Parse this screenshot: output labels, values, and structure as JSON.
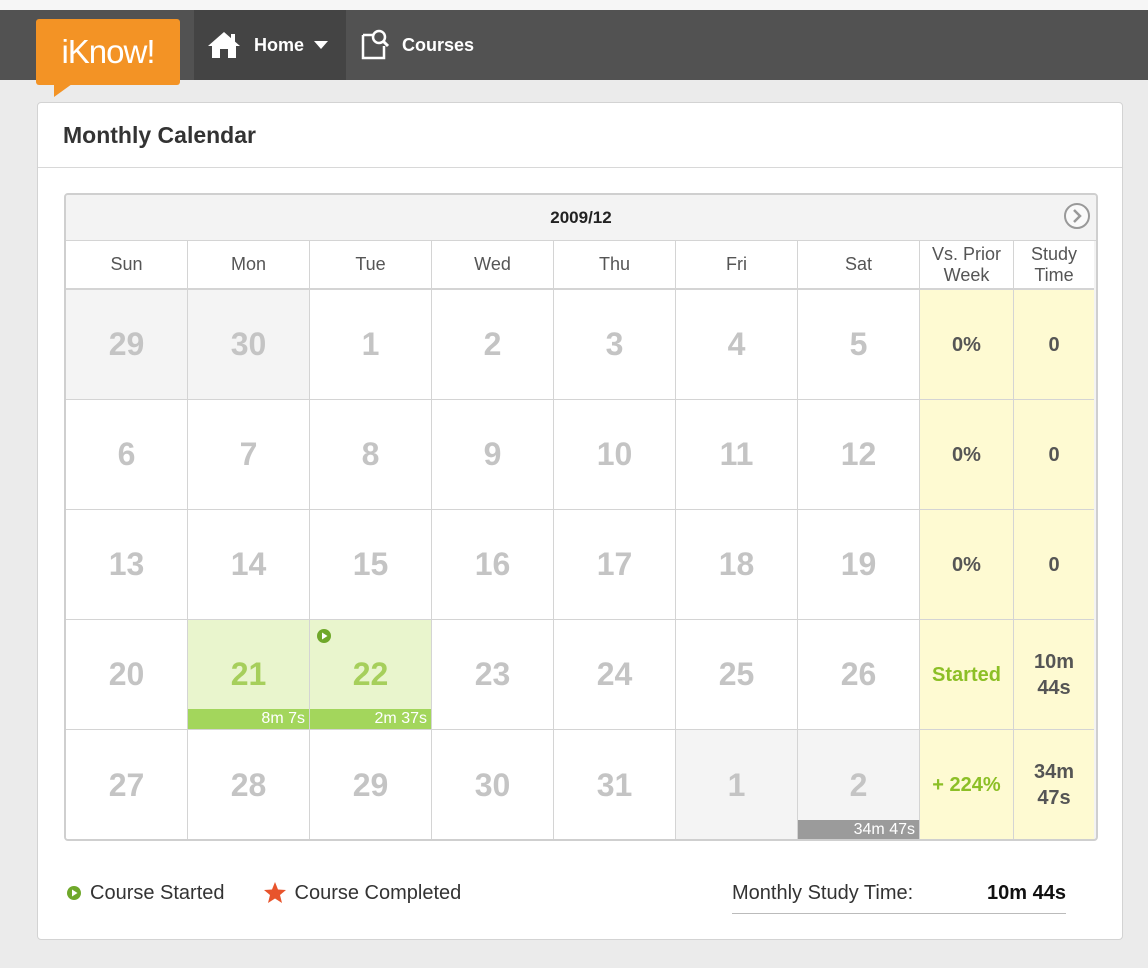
{
  "nav": {
    "logo": "iKnow!",
    "home_label": "Home",
    "courses_label": "Courses"
  },
  "panel": {
    "title": "Monthly Calendar"
  },
  "calendar": {
    "month": "2009/12",
    "headers": [
      "Sun",
      "Mon",
      "Tue",
      "Wed",
      "Thu",
      "Fri",
      "Sat",
      "Vs. Prior Week",
      "Study Time"
    ],
    "weeks": [
      {
        "days": [
          {
            "n": "29",
            "t": "other"
          },
          {
            "n": "30",
            "t": "other"
          },
          {
            "n": "1"
          },
          {
            "n": "2"
          },
          {
            "n": "3"
          },
          {
            "n": "4"
          },
          {
            "n": "5"
          }
        ],
        "vs": "0%",
        "time": "0"
      },
      {
        "days": [
          {
            "n": "6"
          },
          {
            "n": "7"
          },
          {
            "n": "8"
          },
          {
            "n": "9"
          },
          {
            "n": "10"
          },
          {
            "n": "11"
          },
          {
            "n": "12"
          }
        ],
        "vs": "0%",
        "time": "0"
      },
      {
        "days": [
          {
            "n": "13"
          },
          {
            "n": "14"
          },
          {
            "n": "15"
          },
          {
            "n": "16"
          },
          {
            "n": "17"
          },
          {
            "n": "18"
          },
          {
            "n": "19"
          }
        ],
        "vs": "0%",
        "time": "0"
      },
      {
        "days": [
          {
            "n": "20"
          },
          {
            "n": "21",
            "t": "active",
            "bar": "8m 7s"
          },
          {
            "n": "22",
            "t": "active",
            "bar": "2m 37s",
            "started": true
          },
          {
            "n": "23"
          },
          {
            "n": "24"
          },
          {
            "n": "25"
          },
          {
            "n": "26"
          }
        ],
        "vs": "Started",
        "vs_green": true,
        "time": "10m 44s"
      },
      {
        "days": [
          {
            "n": "27"
          },
          {
            "n": "28"
          },
          {
            "n": "29"
          },
          {
            "n": "30"
          },
          {
            "n": "31"
          },
          {
            "n": "1",
            "t": "other"
          },
          {
            "n": "2",
            "t": "other",
            "bar": "34m 47s",
            "bar_gray": true
          }
        ],
        "vs": "+ 224%",
        "vs_green": true,
        "time": "34m 47s"
      }
    ]
  },
  "legend": {
    "started": "Course Started",
    "completed": "Course Completed"
  },
  "summary": {
    "label": "Monthly Study Time:",
    "value": "10m 44s"
  },
  "colors": {
    "brand": "#f39325",
    "nav": "#525252",
    "active": "#e9f5cd",
    "stat": "#fefad2",
    "green": "#8cbf26"
  }
}
